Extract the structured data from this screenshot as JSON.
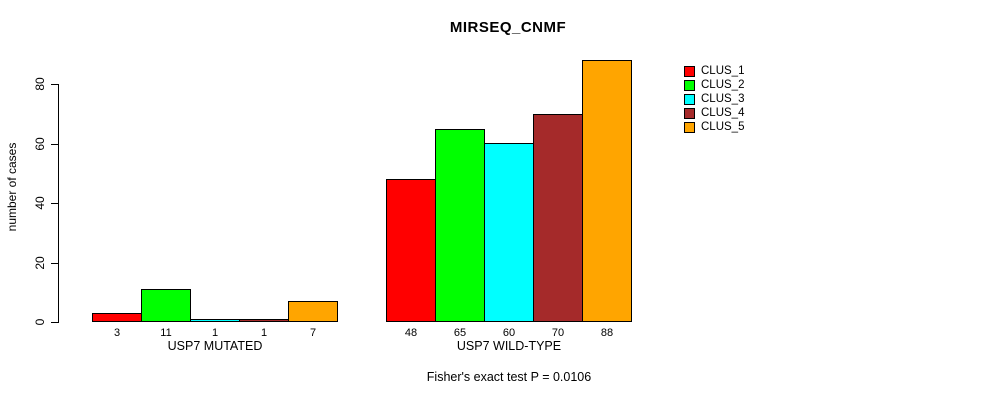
{
  "chart_data": {
    "type": "bar",
    "title": "MIRSEQ_CNMF",
    "xlabel": "",
    "ylabel": "number of cases",
    "categories": [
      "USP7 MUTATED",
      "USP7 WILD-TYPE"
    ],
    "series": [
      {
        "name": "CLUS_1",
        "color": "#FF0000",
        "values": [
          3,
          48
        ]
      },
      {
        "name": "CLUS_2",
        "color": "#00FF00",
        "values": [
          11,
          65
        ]
      },
      {
        "name": "CLUS_3",
        "color": "#00FFFF",
        "values": [
          1,
          60
        ]
      },
      {
        "name": "CLUS_4",
        "color": "#A52A2A",
        "values": [
          1,
          70
        ]
      },
      {
        "name": "CLUS_5",
        "color": "#FFA500",
        "values": [
          7,
          88
        ]
      }
    ],
    "yticks": [
      0,
      20,
      40,
      60,
      80
    ],
    "ylim": [
      0,
      88
    ],
    "bar_value_labels": true,
    "grid": false,
    "legend_position": "right",
    "annotation": "Fisher's exact test P = 0.0106"
  }
}
